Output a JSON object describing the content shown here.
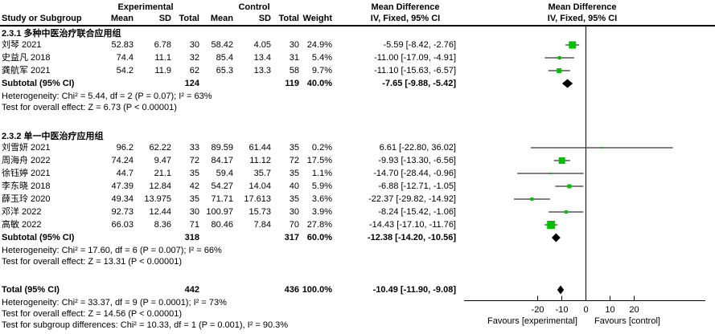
{
  "headers": {
    "experimental": "Experimental",
    "control": "Control",
    "mean_difference": "Mean Difference",
    "method": "IV, Fixed, 95% CI"
  },
  "columns": [
    "Study or Subgroup",
    "Mean",
    "SD",
    "Total",
    "Mean",
    "SD",
    "Total",
    "Weight"
  ],
  "colors": {
    "marker_green": "#00c000",
    "diamond_black": "#000000",
    "line_black": "#000000",
    "background": "#ffffff"
  },
  "chart_data": {
    "type": "forest",
    "effect_measure": "Mean Difference",
    "model": "IV, Fixed, 95% CI",
    "x_axis": {
      "ticks": [
        -20,
        -10,
        0,
        10,
        20
      ],
      "range": [
        -50,
        50
      ],
      "label_left": "Favours [experimental]",
      "label_right": "Favours [control]"
    },
    "subgroups": [
      {
        "name": "2.3.1 多种中医治疗联合应用组",
        "studies": [
          {
            "study": "刘琴 2021",
            "mean1": "52.83",
            "sd1": "6.78",
            "n1": "30",
            "mean2": "58.42",
            "sd2": "4.05",
            "n2": "30",
            "weight": "24.9%",
            "md": -5.59,
            "lo": -8.42,
            "hi": -2.76,
            "ci_text": "-5.59 [-8.42, -2.76]"
          },
          {
            "study": "史益凡 2018",
            "mean1": "74.4",
            "sd1": "11.1",
            "n1": "32",
            "mean2": "85.4",
            "sd2": "13.4",
            "n2": "31",
            "weight": "5.4%",
            "md": -11.0,
            "lo": -17.09,
            "hi": -4.91,
            "ci_text": "-11.00 [-17.09, -4.91]"
          },
          {
            "study": "龚航军 2021",
            "mean1": "54.2",
            "sd1": "11.9",
            "n1": "62",
            "mean2": "65.3",
            "sd2": "13.3",
            "n2": "58",
            "weight": "9.7%",
            "md": -11.1,
            "lo": -15.63,
            "hi": -6.57,
            "ci_text": "-11.10 [-15.63, -6.57]"
          }
        ],
        "subtotal": {
          "label": "Subtotal (95% CI)",
          "n1": "124",
          "n2": "119",
          "weight": "40.0%",
          "md": -7.65,
          "lo": -9.88,
          "hi": -5.42,
          "ci_text": "-7.65 [-9.88, -5.42]"
        },
        "heterogeneity": "Heterogeneity: Chi² = 5.44, df = 2 (P = 0.07); I² = 63%",
        "overall_effect": "Test for overall effect: Z = 6.73 (P < 0.00001)"
      },
      {
        "name": "2.3.2 单一中医治疗应用组",
        "studies": [
          {
            "study": "刘雪妍 2021",
            "mean1": "96.2",
            "sd1": "62.22",
            "n1": "33",
            "mean2": "89.59",
            "sd2": "61.44",
            "n2": "35",
            "weight": "0.2%",
            "md": 6.61,
            "lo": -22.8,
            "hi": 36.02,
            "ci_text": "6.61 [-22.80, 36.02]"
          },
          {
            "study": "周海舟 2022",
            "mean1": "74.24",
            "sd1": "9.47",
            "n1": "72",
            "mean2": "84.17",
            "sd2": "11.12",
            "n2": "72",
            "weight": "17.5%",
            "md": -9.93,
            "lo": -13.3,
            "hi": -6.56,
            "ci_text": "-9.93 [-13.30, -6.56]"
          },
          {
            "study": "徐钰婷 2021",
            "mean1": "44.7",
            "sd1": "21.1",
            "n1": "35",
            "mean2": "59.4",
            "sd2": "35.7",
            "n2": "35",
            "weight": "1.1%",
            "md": -14.7,
            "lo": -28.44,
            "hi": -0.96,
            "ci_text": "-14.70 [-28.44, -0.96]"
          },
          {
            "study": "李东晓 2018",
            "mean1": "47.39",
            "sd1": "12.84",
            "n1": "42",
            "mean2": "54.27",
            "sd2": "14.04",
            "n2": "40",
            "weight": "5.9%",
            "md": -6.88,
            "lo": -12.71,
            "hi": -1.05,
            "ci_text": "-6.88 [-12.71, -1.05]"
          },
          {
            "study": "薛玉玲 2020",
            "mean1": "49.34",
            "sd1": "13.975",
            "n1": "35",
            "mean2": "71.71",
            "sd2": "17.613",
            "n2": "35",
            "weight": "3.6%",
            "md": -22.37,
            "lo": -29.82,
            "hi": -14.92,
            "ci_text": "-22.37 [-29.82, -14.92]"
          },
          {
            "study": "邓洋 2022",
            "mean1": "92.73",
            "sd1": "12.44",
            "n1": "30",
            "mean2": "100.97",
            "sd2": "15.73",
            "n2": "30",
            "weight": "3.9%",
            "md": -8.24,
            "lo": -15.42,
            "hi": -1.06,
            "ci_text": "-8.24 [-15.42, -1.06]"
          },
          {
            "study": "高敏 2022",
            "mean1": "66.03",
            "sd1": "8.36",
            "n1": "71",
            "mean2": "80.46",
            "sd2": "7.84",
            "n2": "70",
            "weight": "27.8%",
            "md": -14.43,
            "lo": -17.1,
            "hi": -11.76,
            "ci_text": "-14.43 [-17.10, -11.76]"
          }
        ],
        "subtotal": {
          "label": "Subtotal (95% CI)",
          "n1": "318",
          "n2": "317",
          "weight": "60.0%",
          "md": -12.38,
          "lo": -14.2,
          "hi": -10.56,
          "ci_text": "-12.38 [-14.20, -10.56]"
        },
        "heterogeneity": "Heterogeneity: Chi² = 17.60, df = 6 (P = 0.007); I² = 66%",
        "overall_effect": "Test for overall effect: Z = 13.31 (P < 0.00001)"
      }
    ],
    "total": {
      "label": "Total (95% CI)",
      "n1": "442",
      "n2": "436",
      "weight": "100.0%",
      "md": -10.49,
      "lo": -11.9,
      "hi": -9.08,
      "ci_text": "-10.49 [-11.90, -9.08]"
    },
    "total_heterogeneity": "Heterogeneity: Chi² = 33.37, df = 9 (P = 0.0001); I² = 73%",
    "total_overall_effect": "Test for overall effect: Z = 14.56 (P < 0.00001)",
    "subgroup_differences": "Test for subgroup differences: Chi² = 10.33, df = 1 (P = 0.001), I² = 90.3%"
  }
}
